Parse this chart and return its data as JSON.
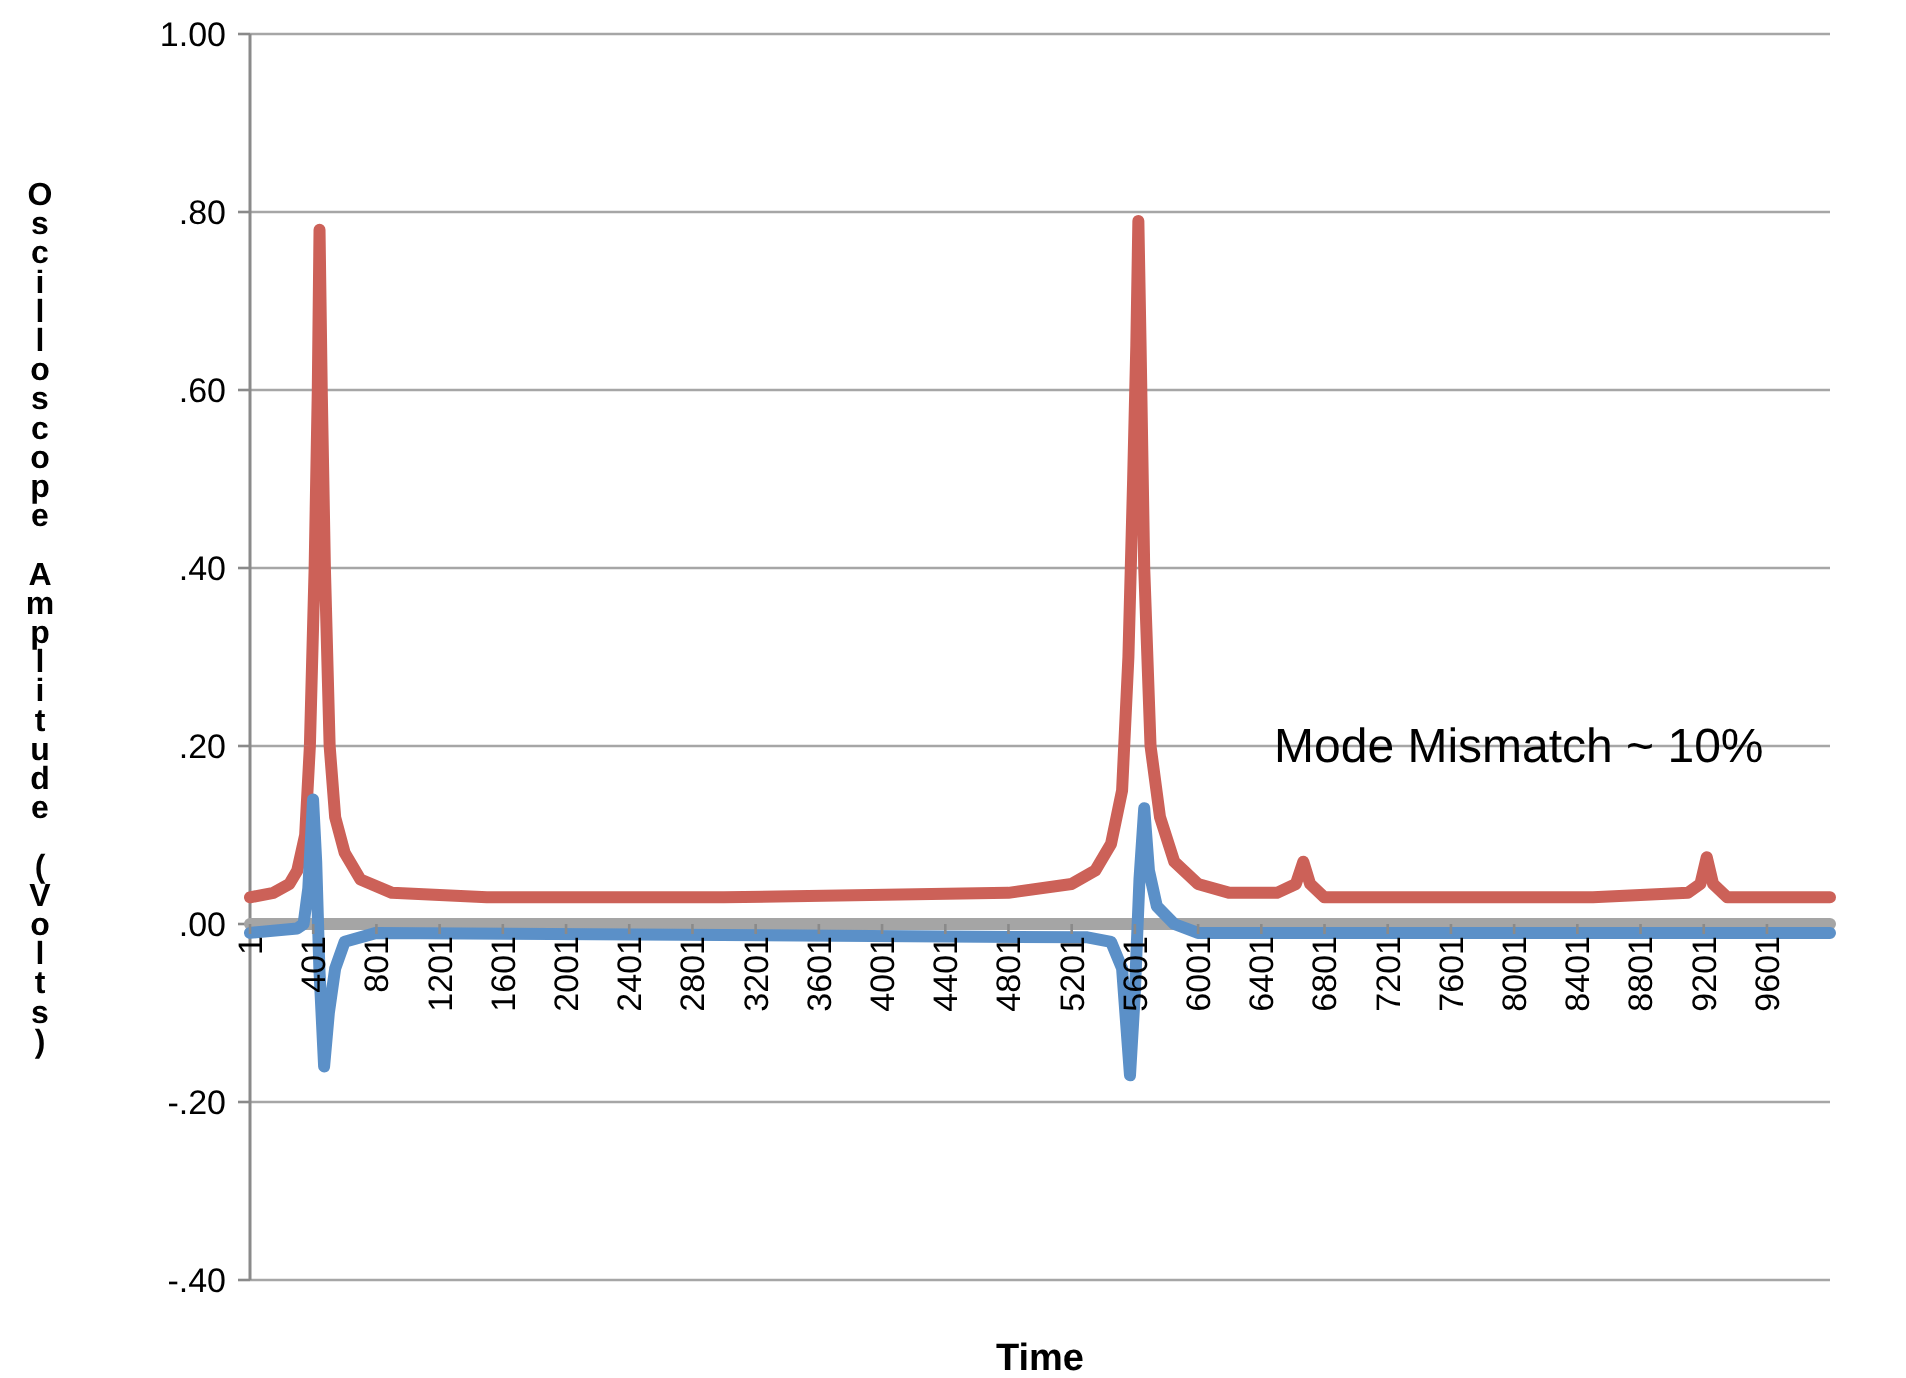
{
  "chart_data": {
    "type": "line",
    "xlabel": "Time",
    "ylabel": "Oscilloscope Amplitude (Volts)",
    "annotations": [
      "Mode Mismatch ~ 10%"
    ],
    "xlim": [
      1,
      10000
    ],
    "xticks": [
      1,
      401,
      801,
      1201,
      1601,
      2001,
      2401,
      2801,
      3201,
      3601,
      4001,
      4401,
      4801,
      5201,
      5601,
      6001,
      6401,
      6801,
      7201,
      7601,
      8001,
      8401,
      8801,
      9201,
      9601
    ],
    "ylim": [
      -0.4,
      1.0
    ],
    "yticks": [
      {
        "value": -0.4,
        "label": "-.40"
      },
      {
        "value": -0.2,
        "label": "-.20"
      },
      {
        "value": 0,
        "label": ".00"
      },
      {
        "value": 0.2,
        "label": ".20"
      },
      {
        "value": 0.4,
        "label": ".40"
      },
      {
        "value": 0.6,
        "label": ".60"
      },
      {
        "value": 0.8,
        "label": ".80"
      },
      {
        "value": 1.0,
        "label": "1.00"
      }
    ],
    "grid": "y",
    "marker": "none",
    "line_style": "solid",
    "series": [
      {
        "color": "#a5a5a5",
        "x": [
          1,
          10000
        ],
        "values": [
          0,
          0
        ]
      },
      {
        "color": "#cc6158",
        "x": [
          1,
          150,
          250,
          300,
          350,
          380,
          410,
          430,
          441,
          455,
          475,
          505,
          540,
          600,
          700,
          900,
          1500,
          3000,
          4800,
          5200,
          5350,
          5450,
          5520,
          5560,
          5590,
          5610,
          5623,
          5637,
          5660,
          5700,
          5760,
          5850,
          6000,
          6200,
          6500,
          6620,
          6667,
          6710,
          6800,
          8500,
          9100,
          9180,
          9220,
          9260,
          9350,
          10000
        ],
        "values": [
          0.03,
          0.035,
          0.045,
          0.06,
          0.1,
          0.2,
          0.4,
          0.6,
          0.78,
          0.6,
          0.4,
          0.2,
          0.12,
          0.08,
          0.05,
          0.035,
          0.03,
          0.03,
          0.035,
          0.045,
          0.06,
          0.09,
          0.15,
          0.3,
          0.5,
          0.65,
          0.79,
          0.65,
          0.4,
          0.2,
          0.12,
          0.07,
          0.045,
          0.035,
          0.035,
          0.045,
          0.07,
          0.045,
          0.03,
          0.03,
          0.035,
          0.045,
          0.075,
          0.045,
          0.03,
          0.03
        ]
      },
      {
        "color": "#5b90c8",
        "x": [
          1,
          300,
          340,
          370,
          400,
          420,
          440,
          470,
          500,
          540,
          600,
          800,
          5300,
          5450,
          5520,
          5570,
          5600,
          5630,
          5660,
          5690,
          5740,
          5850,
          6000,
          10000
        ],
        "values": [
          -0.01,
          -0.005,
          0.0,
          0.04,
          0.14,
          0.07,
          -0.05,
          -0.16,
          -0.1,
          -0.05,
          -0.02,
          -0.01,
          -0.015,
          -0.02,
          -0.05,
          -0.17,
          -0.08,
          0.05,
          0.13,
          0.06,
          0.02,
          0.0,
          -0.01,
          -0.01
        ]
      }
    ]
  }
}
